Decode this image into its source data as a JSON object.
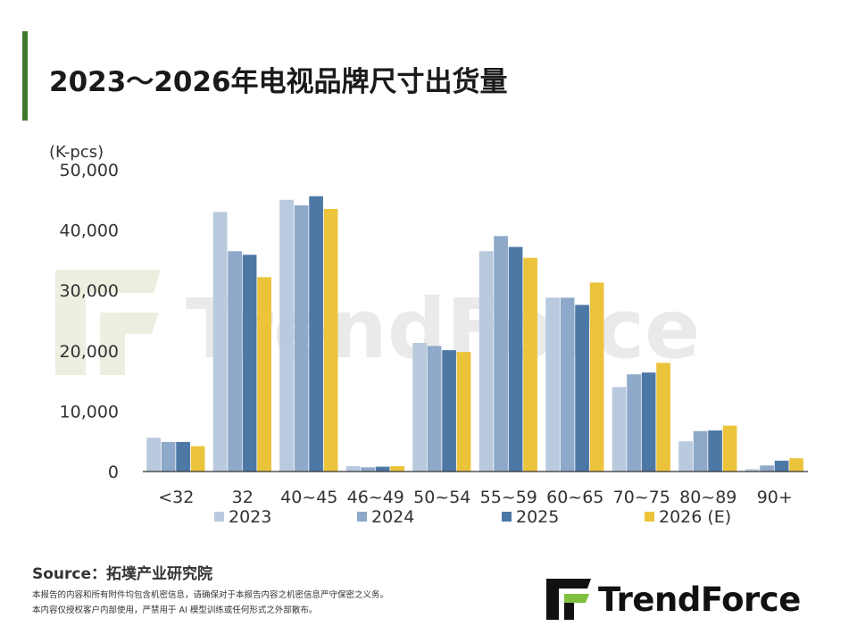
{
  "title": "2023～2026年电视品牌尺寸出货量",
  "colors": {
    "accent": "#3e7a2c",
    "series": [
      "#b9c9de",
      "#8ea9c9",
      "#4d78a6",
      "#ebc43c"
    ],
    "axis": "#333333",
    "watermark": "#e6e6e6",
    "watermark_accent": "#eef4df"
  },
  "chart_data": {
    "type": "bar",
    "ylabel": "(K-pcs)",
    "ylim": [
      0,
      50000
    ],
    "y_ticks": [
      "0",
      "10,000",
      "20,000",
      "30,000",
      "40,000",
      "50,000"
    ],
    "categories": [
      "<32",
      "32",
      "40~45",
      "46~49",
      "50~54",
      "55~59",
      "60~65",
      "70~75",
      "80~89",
      "90+"
    ],
    "series": [
      {
        "name": "2023",
        "values": [
          5600,
          43000,
          45000,
          900,
          21300,
          36500,
          28800,
          14000,
          5000,
          400
        ]
      },
      {
        "name": "2024",
        "values": [
          4900,
          36500,
          44100,
          700,
          20800,
          39000,
          28800,
          16100,
          6700,
          1000
        ]
      },
      {
        "name": "2025",
        "values": [
          4900,
          35900,
          45600,
          800,
          20100,
          37200,
          27600,
          16400,
          6800,
          1800
        ]
      },
      {
        "name": "2026 (E)",
        "values": [
          4200,
          32200,
          43500,
          900,
          19800,
          35400,
          31300,
          18000,
          7600,
          2200
        ]
      }
    ],
    "legend_position": "bottom",
    "grid": false
  },
  "source": "Source：拓墣产业研究院",
  "disclaimer": [
    "本报告的内容和所有附件均包含机密信息，请确保对于本报告内容之机密信息严守保密之义务。",
    "本内容仅授权客户内部使用，严禁用于 AI 模型训练或任何形式之外部散布。"
  ],
  "brand": {
    "name": "TrendForce",
    "logo_icon": "trendforce-logo-icon"
  }
}
